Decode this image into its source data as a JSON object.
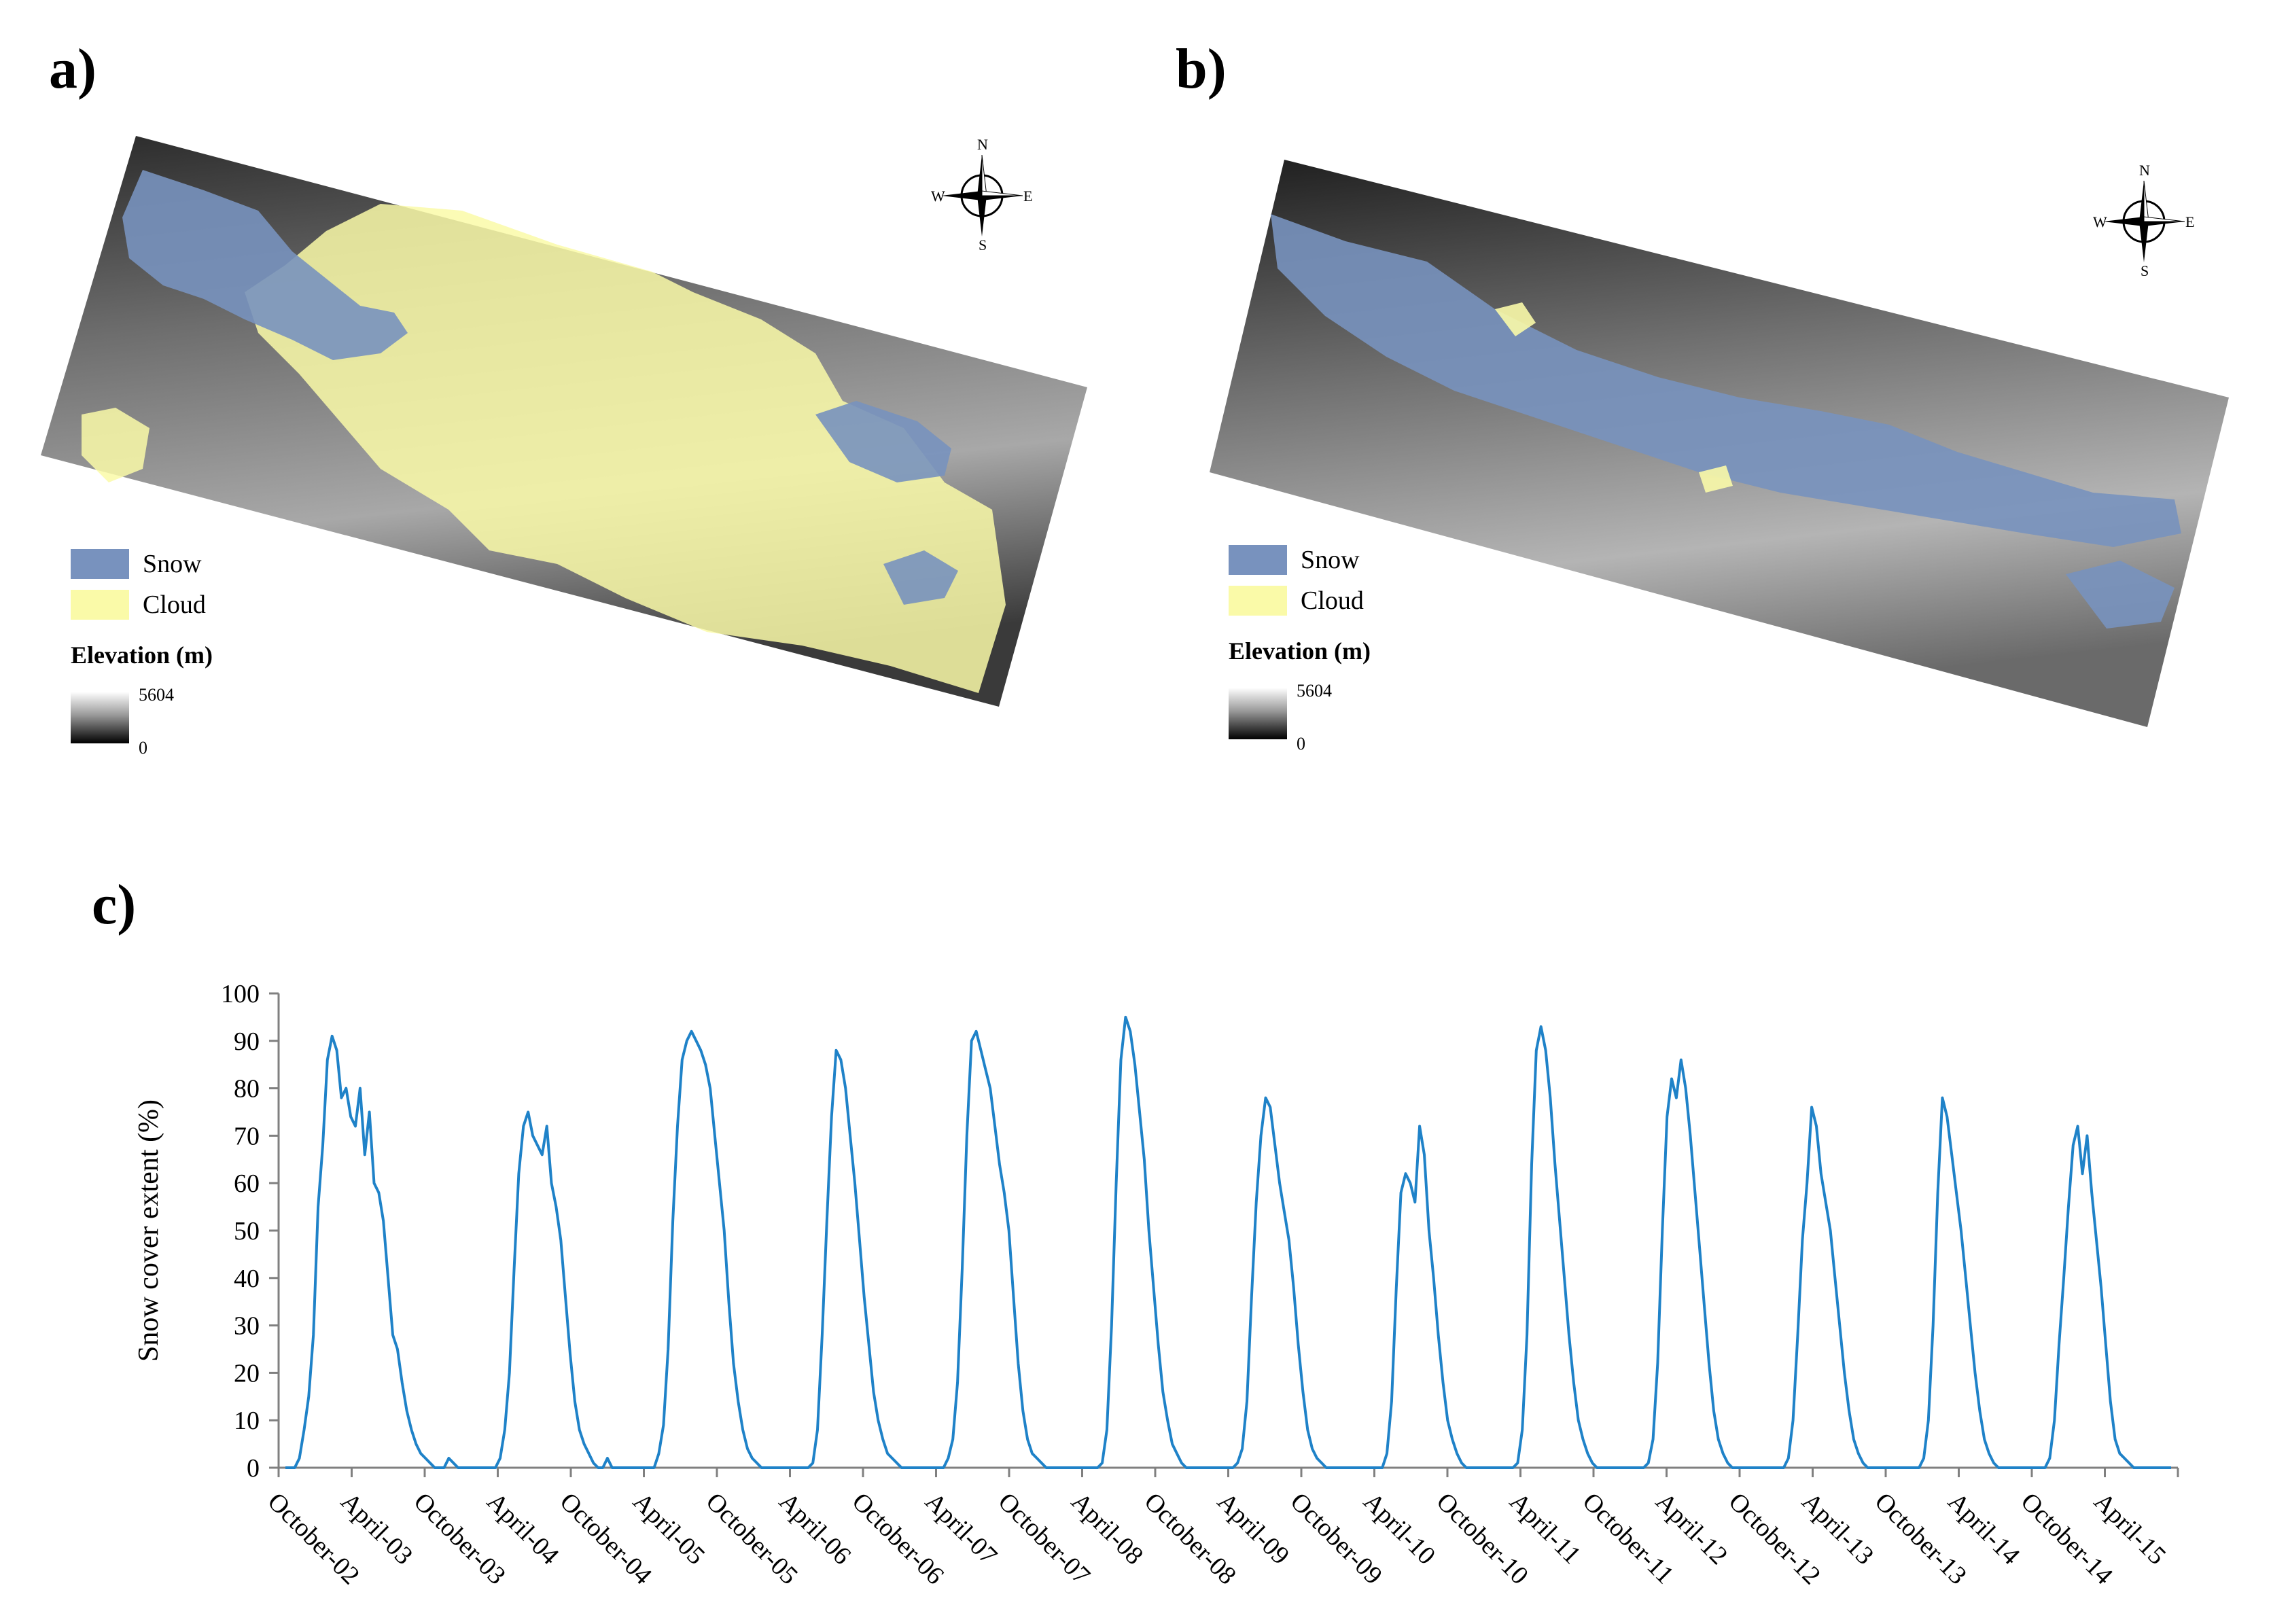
{
  "panels": {
    "a": {
      "label": "a)"
    },
    "b": {
      "label": "b)"
    },
    "c": {
      "label": "c)"
    }
  },
  "legend": {
    "snow_label": "Snow",
    "cloud_label": "Cloud",
    "elevation_title": "Elevation (m)",
    "elevation_max": "5604",
    "elevation_min": "0"
  },
  "compass": {
    "n": "N",
    "s": "S",
    "e": "E",
    "w": "W"
  },
  "colors": {
    "snow": "#7892BE",
    "cloud": "#FAFAA8",
    "line": "#1F82C8",
    "axis": "#808080"
  },
  "chart_data": {
    "type": "line",
    "title": "",
    "xlabel": "",
    "ylabel": "Snow cover extent (%)",
    "ylim": [
      0,
      100
    ],
    "yticks": [
      0,
      10,
      20,
      30,
      40,
      50,
      60,
      70,
      80,
      90,
      100
    ],
    "grid": false,
    "legend": "none",
    "x_tick_labels": [
      "October-02",
      "April-03",
      "October-03",
      "April-04",
      "October-04",
      "April-05",
      "October-05",
      "April-06",
      "October-06",
      "April-07",
      "October-07",
      "April-08",
      "October-08",
      "April-09",
      "October-09",
      "April-10",
      "October-10",
      "April-11",
      "October-11",
      "April-12",
      "October-12",
      "April-13",
      "October-13",
      "April-14",
      "October-14",
      "April-15"
    ],
    "series": [
      {
        "name": "Snow cover extent",
        "values": [
          0,
          0,
          0,
          2,
          8,
          15,
          28,
          55,
          68,
          86,
          91,
          88,
          78,
          80,
          74,
          72,
          80,
          66,
          75,
          60,
          58,
          52,
          40,
          28,
          25,
          18,
          12,
          8,
          5,
          3,
          2,
          1,
          0,
          0,
          0,
          2,
          1,
          0,
          0,
          0,
          0,
          0,
          0,
          0,
          0,
          0,
          2,
          8,
          20,
          42,
          62,
          72,
          75,
          70,
          68,
          66,
          72,
          60,
          55,
          48,
          36,
          24,
          14,
          8,
          5,
          3,
          1,
          0,
          0,
          2,
          0,
          0,
          0,
          0,
          0,
          0,
          0,
          0,
          0,
          0,
          3,
          9,
          25,
          52,
          72,
          86,
          90,
          92,
          90,
          88,
          85,
          80,
          70,
          60,
          50,
          35,
          22,
          14,
          8,
          4,
          2,
          1,
          0,
          0,
          0,
          0,
          0,
          0,
          0,
          0,
          0,
          0,
          0,
          1,
          8,
          28,
          52,
          74,
          88,
          86,
          80,
          70,
          60,
          48,
          36,
          26,
          16,
          10,
          6,
          3,
          2,
          1,
          0,
          0,
          0,
          0,
          0,
          0,
          0,
          0,
          0,
          0,
          2,
          6,
          18,
          42,
          70,
          90,
          92,
          88,
          84,
          80,
          72,
          64,
          58,
          50,
          36,
          22,
          12,
          6,
          3,
          2,
          1,
          0,
          0,
          0,
          0,
          0,
          0,
          0,
          0,
          0,
          0,
          0,
          0,
          1,
          8,
          30,
          60,
          86,
          95,
          92,
          85,
          75,
          65,
          50,
          38,
          26,
          16,
          10,
          5,
          3,
          1,
          0,
          0,
          0,
          0,
          0,
          0,
          0,
          0,
          0,
          0,
          0,
          1,
          4,
          14,
          36,
          56,
          70,
          78,
          76,
          68,
          60,
          54,
          48,
          38,
          26,
          16,
          8,
          4,
          2,
          1,
          0,
          0,
          0,
          0,
          0,
          0,
          0,
          0,
          0,
          0,
          0,
          0,
          0,
          3,
          14,
          38,
          58,
          62,
          60,
          56,
          72,
          66,
          50,
          40,
          28,
          18,
          10,
          6,
          3,
          1,
          0,
          0,
          0,
          0,
          0,
          0,
          0,
          0,
          0,
          0,
          0,
          1,
          8,
          28,
          64,
          88,
          93,
          88,
          78,
          64,
          52,
          40,
          28,
          18,
          10,
          6,
          3,
          1,
          0,
          0,
          0,
          0,
          0,
          0,
          0,
          0,
          0,
          0,
          0,
          1,
          6,
          22,
          50,
          74,
          82,
          78,
          86,
          80,
          70,
          58,
          46,
          34,
          22,
          12,
          6,
          3,
          1,
          0,
          0,
          0,
          0,
          0,
          0,
          0,
          0,
          0,
          0,
          0,
          0,
          2,
          10,
          28,
          48,
          60,
          76,
          72,
          62,
          56,
          50,
          40,
          30,
          20,
          12,
          6,
          3,
          1,
          0,
          0,
          0,
          0,
          0,
          0,
          0,
          0,
          0,
          0,
          0,
          0,
          2,
          10,
          30,
          58,
          78,
          74,
          66,
          58,
          50,
          40,
          30,
          20,
          12,
          6,
          3,
          1,
          0,
          0,
          0,
          0,
          0,
          0,
          0,
          0,
          0,
          0,
          0,
          2,
          10,
          26,
          40,
          55,
          68,
          72,
          62,
          70,
          58,
          48,
          38,
          26,
          14,
          6,
          3,
          2,
          1,
          0,
          0,
          0,
          0,
          0,
          0,
          0,
          0,
          0
        ]
      }
    ]
  }
}
